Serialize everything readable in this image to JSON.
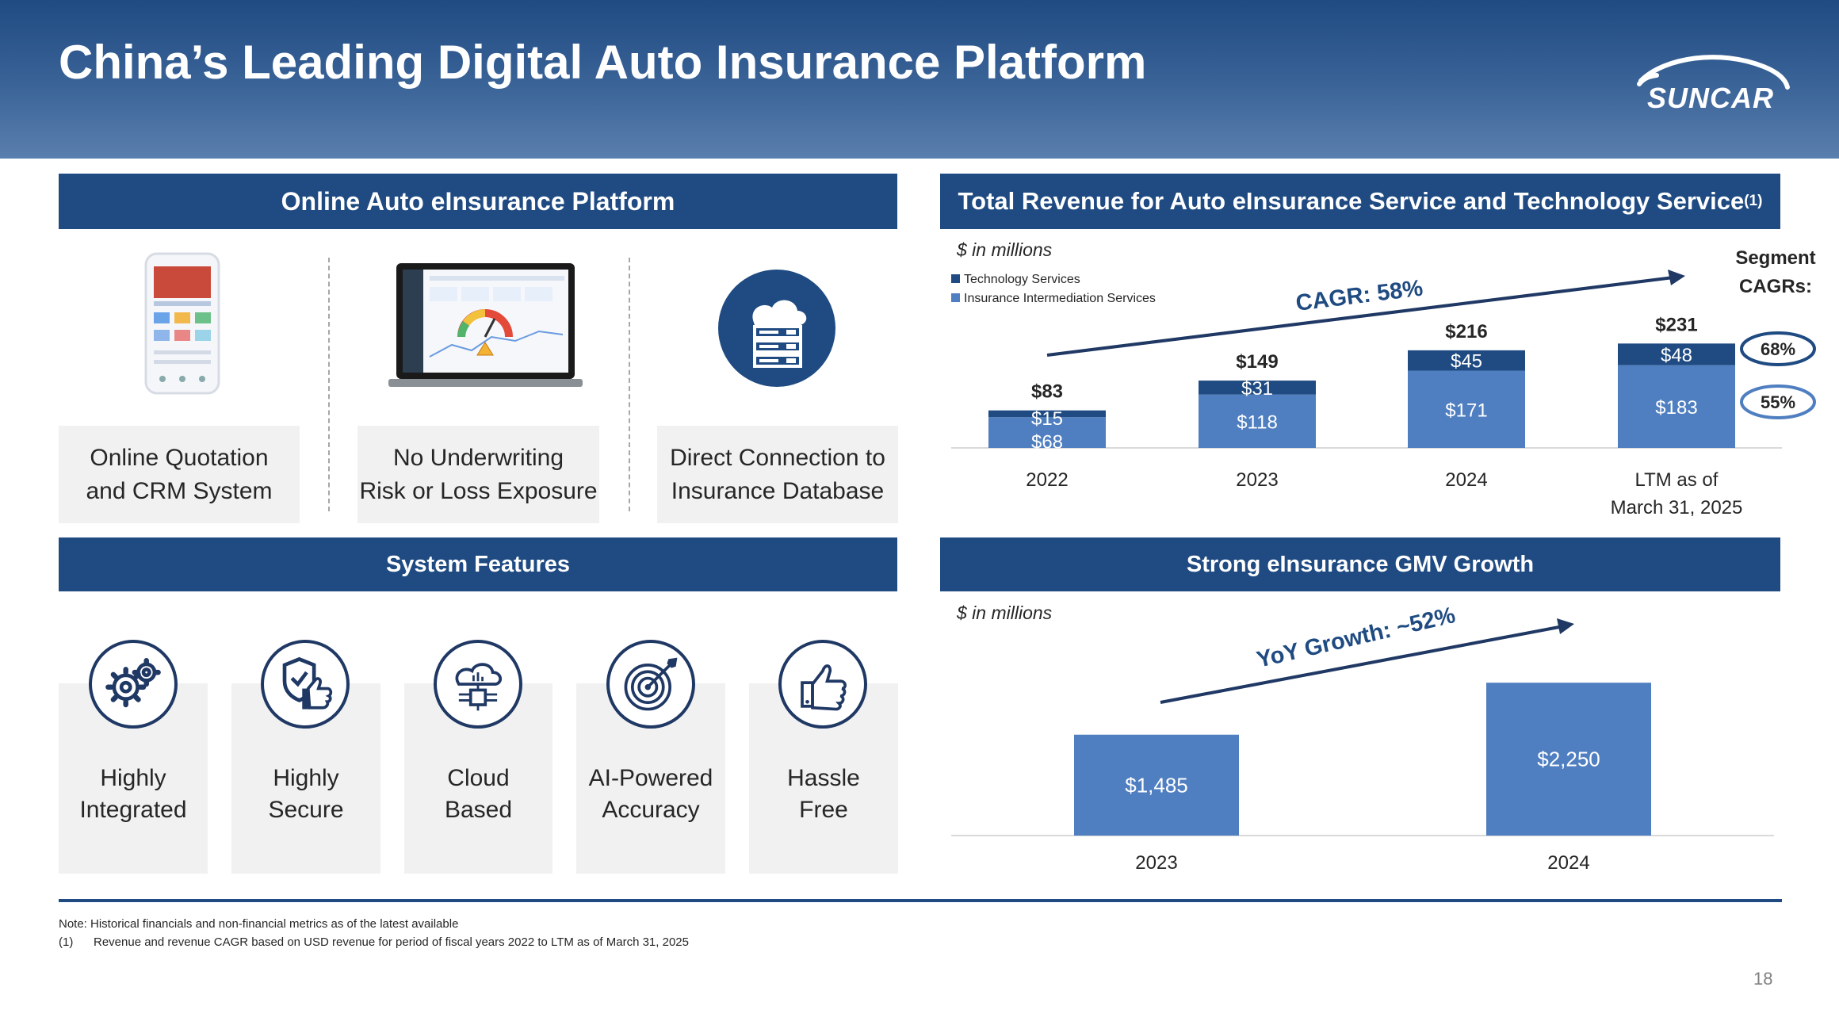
{
  "slide": {
    "title": "China’s Leading Digital Auto Insurance Platform",
    "logo_text": "SUNCAR",
    "page_number": "18"
  },
  "platform": {
    "header": "Online Auto eInsurance Platform",
    "items": [
      {
        "label": "Online Quotation\nand CRM System",
        "icon": "phone-app-icon"
      },
      {
        "label": "No Underwriting\nRisk or Loss Exposure",
        "icon": "laptop-dashboard-icon"
      },
      {
        "label": "Direct Connection to\nInsurance Database",
        "icon": "cloud-server-icon"
      }
    ]
  },
  "features": {
    "header": "System Features",
    "items": [
      {
        "label": "Highly\nIntegrated",
        "icon": "gears-icon"
      },
      {
        "label": "Highly\nSecure",
        "icon": "shield-thumbs-up-icon"
      },
      {
        "label": "Cloud\nBased",
        "icon": "cloud-chip-icon"
      },
      {
        "label": "AI-Powered\nAccuracy",
        "icon": "target-icon"
      },
      {
        "label": "Hassle\nFree",
        "icon": "thumbs-up-icon"
      }
    ]
  },
  "revenue": {
    "header": "Total Revenue for Auto eInsurance Service and Technology Service",
    "header_sup": "(1)",
    "units": "$ in millions",
    "cagr_label": "CAGR: 58%",
    "segment_cagrs_title": "Segment CAGRs:",
    "segment_cagrs": [
      "68%",
      "55%"
    ]
  },
  "gmv": {
    "header": "Strong eInsurance GMV Growth",
    "units": "$ in millions",
    "growth_label": "YoY Growth: ~52%"
  },
  "chart_data": [
    {
      "type": "bar",
      "stacked": true,
      "title": "Total Revenue for Auto eInsurance Service and Technology Service",
      "units": "$ in millions",
      "categories": [
        "2022",
        "2023",
        "2024",
        "LTM as of March 31, 2025"
      ],
      "series": [
        {
          "name": "Insurance Intermediation Services",
          "values": [
            68,
            118,
            171,
            183
          ],
          "labels": [
            "$68",
            "$118",
            "$171",
            "$183"
          ],
          "color": "#4f7fc0"
        },
        {
          "name": "Technology Services",
          "values": [
            15,
            31,
            45,
            48
          ],
          "labels": [
            "$15",
            "$31",
            "$45",
            "$48"
          ],
          "color": "#1f4b82"
        }
      ],
      "totals": [
        "$83",
        "$149",
        "$216",
        "$231"
      ],
      "legend": "top-left",
      "grid": false,
      "ylim": [
        0,
        270
      ]
    },
    {
      "type": "bar",
      "title": "Strong eInsurance GMV Growth",
      "units": "$ in millions",
      "categories": [
        "2023",
        "2024"
      ],
      "values": [
        1485,
        2250
      ],
      "labels": [
        "$1,485",
        "$2,250"
      ],
      "color": "#4f7fc0",
      "grid": false,
      "ylim": [
        0,
        2700
      ]
    }
  ],
  "footnotes": {
    "note": "Note: Historical financials and non-financial metrics as of the latest available",
    "marker": "(1)",
    "text": "Revenue and revenue CAGR based on USD revenue for period of fiscal years 2022 to LTM as of March 31, 2025"
  }
}
